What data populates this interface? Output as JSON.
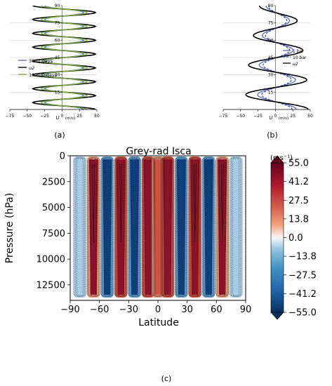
{
  "chart_data": [
    {
      "type": "line",
      "panel_label": "(a)",
      "xlabel": "U",
      "xlabel_unit": "(m/s)",
      "xlim": [
        -75,
        50
      ],
      "ylim": [
        0,
        90
      ],
      "x_ticks": [
        "−75",
        "−50",
        "−25",
        "0",
        "25",
        "50"
      ],
      "y_ticks": [
        "15",
        "30",
        "45",
        "60",
        "75",
        "90"
      ],
      "legend": {
        "placement": "center-left",
        "entries": [
          "3600  days",
          "u2",
          "10,800 days"
        ]
      },
      "series": [
        {
          "name": "3600 days",
          "color": "#5b6fc0",
          "amplitude": 28,
          "jets_per_90deg": 7.5
        },
        {
          "name": "u2",
          "color": "#000000",
          "amplitude": 45,
          "jets_per_90deg": 7.5
        },
        {
          "name": "10,800 days",
          "color": "#7fb43c",
          "amplitude": 33,
          "jets_per_90deg": 7.5
        }
      ]
    },
    {
      "type": "line",
      "panel_label": "(b)",
      "xlabel": "U",
      "xlabel_unit": "(m/s)",
      "xlim": [
        -75,
        50
      ],
      "ylim": [
        0,
        90
      ],
      "x_ticks": [
        "−75",
        "−50",
        "−25",
        "0",
        "25",
        "50"
      ],
      "y_ticks": [
        "15",
        "30",
        "45",
        "60",
        "75",
        "90"
      ],
      "legend": {
        "placement": "center-right",
        "entries": [
          "1 bar",
          "10 bar",
          "u2"
        ]
      },
      "series": [
        {
          "name": "1 bar",
          "color": "#5b6fc0",
          "dash": "solid",
          "amplitude": 28,
          "jets_per_90deg": 3.5
        },
        {
          "name": "10 bar",
          "color": "#3b4fa0",
          "dash": "dashed",
          "amplitude": 22,
          "jets_per_90deg": 3.5
        },
        {
          "name": "u2",
          "color": "#000000",
          "dash": "solid",
          "amplitude": 45,
          "jets_per_90deg": 3.5
        }
      ]
    },
    {
      "type": "heatmap",
      "panel_label": "(c)",
      "title": "Grey-rad Isca",
      "xlabel": "Latitude",
      "ylabel": "Pressure (hPa)",
      "xlim": [
        -90,
        90
      ],
      "ylim": [
        14000,
        0
      ],
      "x_ticks": [
        "−90",
        "−60",
        "−30",
        "0",
        "30",
        "60",
        "90"
      ],
      "y_ticks": [
        "0",
        "2500",
        "5000",
        "7500",
        "10000",
        "12500"
      ],
      "colorbar": {
        "unit": "(ms⁻¹)",
        "min": -55.0,
        "max": 55.0,
        "tick_labels": [
          "55.0",
          "41.2",
          "27.5",
          "13.8",
          "0.0",
          "−13.8",
          "−27.5",
          "−41.2",
          "−55.0"
        ]
      },
      "jet_centers_deg": [
        -80,
        -66,
        -52,
        -38,
        -24,
        -10,
        0,
        10,
        24,
        38,
        52,
        66,
        80
      ],
      "jet_signs": [
        -1,
        1,
        -1,
        1,
        -1,
        1,
        1,
        1,
        -1,
        1,
        -1,
        1,
        -1
      ],
      "jet_peak_ms": [
        18,
        45,
        55,
        55,
        50,
        52,
        30,
        52,
        50,
        55,
        55,
        45,
        18
      ]
    }
  ],
  "captions": {
    "a": "(a)",
    "b": "(b)",
    "c": "(c)"
  },
  "colors": {
    "red_strong": "#7a0d22",
    "red": "#c6383a",
    "white": "#f5f5f5",
    "blue": "#2f6aa8",
    "blue_strong": "#0a2c5e"
  }
}
